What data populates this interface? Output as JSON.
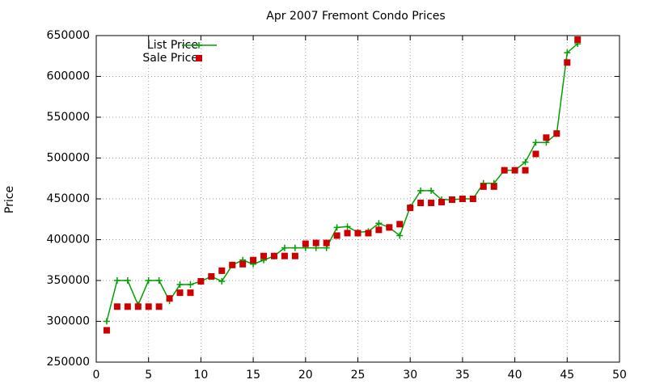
{
  "chart_data": {
    "type": "line",
    "title": "Apr 2007 Fremont Condo Prices",
    "y_label": "Price",
    "x": [
      1,
      2,
      3,
      4,
      5,
      6,
      7,
      8,
      9,
      10,
      11,
      12,
      13,
      14,
      15,
      16,
      17,
      18,
      19,
      20,
      21,
      22,
      23,
      24,
      25,
      26,
      27,
      28,
      29,
      30,
      31,
      32,
      33,
      34,
      35,
      36,
      37,
      38,
      39,
      40,
      41,
      42,
      43,
      44,
      45,
      46
    ],
    "series": [
      {
        "name": "List Price",
        "color": "#00a000",
        "style": "linespoints",
        "values": [
          300000,
          350000,
          350000,
          320000,
          350000,
          350000,
          325000,
          345000,
          345000,
          349000,
          355000,
          349000,
          369000,
          375000,
          370000,
          375000,
          380000,
          390000,
          390000,
          390000,
          390000,
          390000,
          415000,
          416000,
          409000,
          410000,
          420000,
          415000,
          405000,
          440000,
          460000,
          460000,
          449000,
          449000,
          450000,
          450000,
          469000,
          469000,
          485000,
          485000,
          495000,
          519000,
          519000,
          530000,
          629000,
          640000
        ]
      },
      {
        "name": "Sale Price",
        "color": "#cc0000",
        "style": "points",
        "values": [
          289000,
          318000,
          318000,
          318000,
          318000,
          318000,
          328000,
          335000,
          335000,
          349000,
          355000,
          362000,
          369000,
          370000,
          375000,
          380000,
          380000,
          380000,
          380000,
          395000,
          396000,
          396000,
          405000,
          408000,
          408000,
          408000,
          412000,
          415000,
          419000,
          439000,
          445000,
          445000,
          446000,
          449000,
          450000,
          450000,
          465000,
          465000,
          485000,
          485000,
          485000,
          505000,
          525000,
          530000,
          617000,
          645000
        ]
      }
    ],
    "xlim": [
      0,
      50
    ],
    "xticks": [
      0,
      5,
      10,
      15,
      20,
      25,
      30,
      35,
      40,
      45,
      50
    ],
    "ylim": [
      250000,
      650000
    ],
    "yticks": [
      250000,
      300000,
      350000,
      400000,
      450000,
      500000,
      550000,
      600000,
      650000
    ],
    "grid": true,
    "legend": "top-left"
  }
}
